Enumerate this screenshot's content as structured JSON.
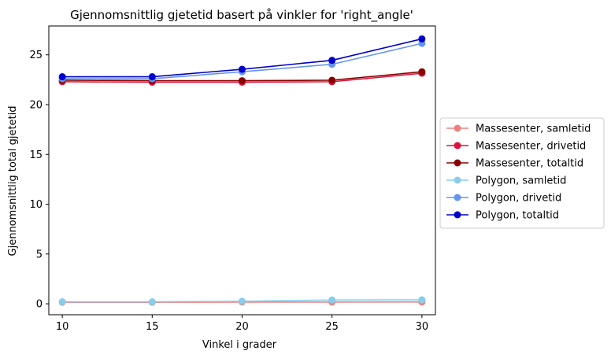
{
  "chart_data": {
    "type": "line",
    "title": "Gjennomsnittlig gjetetid basert på vinkler for 'right_angle'",
    "xlabel": "Vinkel i grader",
    "ylabel": "Gjennomsnittlig total gjetetid",
    "x": [
      10,
      15,
      20,
      25,
      30
    ],
    "xticks": [
      10,
      15,
      20,
      25,
      30
    ],
    "yticks": [
      0,
      5,
      10,
      15,
      20,
      25
    ],
    "xlim": [
      9.25,
      30.75
    ],
    "ylim": [
      -1.1,
      27.9
    ],
    "grid": false,
    "legend_position": "center-right outside",
    "series": [
      {
        "name": "Massesenter, samletid",
        "color": "#f08080",
        "values": [
          0.15,
          0.15,
          0.17,
          0.17,
          0.18
        ]
      },
      {
        "name": "Massesenter, drivetid",
        "color": "#dc143c",
        "values": [
          22.3,
          22.25,
          22.25,
          22.3,
          23.15
        ]
      },
      {
        "name": "Massesenter, totaltid",
        "color": "#8b0000",
        "values": [
          22.45,
          22.4,
          22.4,
          22.45,
          23.3
        ]
      },
      {
        "name": "Polygon, samletid",
        "color": "#87ceeb",
        "values": [
          0.2,
          0.2,
          0.25,
          0.38,
          0.4
        ]
      },
      {
        "name": "Polygon, drivetid",
        "color": "#6495ed",
        "values": [
          22.6,
          22.6,
          23.3,
          24.05,
          26.15
        ]
      },
      {
        "name": "Polygon, totaltid",
        "color": "#0000cd",
        "values": [
          22.8,
          22.8,
          23.55,
          24.45,
          26.6
        ]
      }
    ]
  }
}
